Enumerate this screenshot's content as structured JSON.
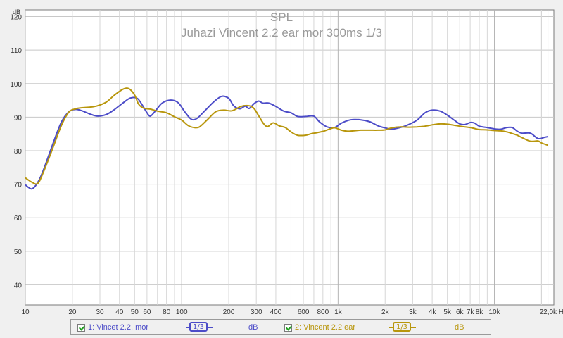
{
  "chart_data": {
    "type": "line",
    "title": "SPL",
    "subtitle": "Juhazi Vincent 2.2 ear mor 300ms 1/3",
    "ylabel": "dB",
    "xscale": "log",
    "xlim": [
      10,
      24000
    ],
    "ylim": [
      34,
      122
    ],
    "yticks": [
      40,
      50,
      60,
      70,
      80,
      90,
      100,
      110,
      120
    ],
    "xticks": [
      {
        "v": 10,
        "label": "10"
      },
      {
        "v": 20,
        "label": "20"
      },
      {
        "v": 30,
        "label": "30"
      },
      {
        "v": 40,
        "label": "40"
      },
      {
        "v": 50,
        "label": "50"
      },
      {
        "v": 60,
        "label": "60"
      },
      {
        "v": 80,
        "label": "80"
      },
      {
        "v": 100,
        "label": "100"
      },
      {
        "v": 200,
        "label": "200"
      },
      {
        "v": 300,
        "label": "300"
      },
      {
        "v": 400,
        "label": "400"
      },
      {
        "v": 600,
        "label": "600"
      },
      {
        "v": 800,
        "label": "800"
      },
      {
        "v": 1000,
        "label": "1k"
      },
      {
        "v": 2000,
        "label": "2k"
      },
      {
        "v": 3000,
        "label": "3k"
      },
      {
        "v": 4000,
        "label": "4k"
      },
      {
        "v": 5000,
        "label": "5k"
      },
      {
        "v": 6000,
        "label": "6k"
      },
      {
        "v": 7000,
        "label": "7k"
      },
      {
        "v": 8000,
        "label": "8k"
      },
      {
        "v": 10000,
        "label": "10k"
      },
      {
        "v": 22000,
        "label": "22,0k Hz"
      }
    ],
    "grid": true,
    "series": [
      {
        "name": "1: Vincet 2.2. mor",
        "color": "#4c4cc8",
        "points": [
          [
            10,
            69.8
          ],
          [
            11,
            68.6
          ],
          [
            12,
            70.5
          ],
          [
            13,
            74
          ],
          [
            15,
            82
          ],
          [
            17,
            88.5
          ],
          [
            19,
            91.6
          ],
          [
            21,
            92.3
          ],
          [
            23,
            91.9
          ],
          [
            26,
            90.9
          ],
          [
            29,
            90.3
          ],
          [
            33,
            90.8
          ],
          [
            37,
            92.2
          ],
          [
            42,
            94.2
          ],
          [
            47,
            95.7
          ],
          [
            52,
            95.6
          ],
          [
            56,
            93.6
          ],
          [
            60,
            91.3
          ],
          [
            63,
            90.3
          ],
          [
            68,
            91.9
          ],
          [
            75,
            94.2
          ],
          [
            85,
            95.1
          ],
          [
            95,
            94.3
          ],
          [
            105,
            91.5
          ],
          [
            115,
            89.4
          ],
          [
            125,
            89.6
          ],
          [
            140,
            91.8
          ],
          [
            160,
            94.5
          ],
          [
            180,
            96.2
          ],
          [
            200,
            95.6
          ],
          [
            215,
            93.4
          ],
          [
            235,
            92.5
          ],
          [
            255,
            93.3
          ],
          [
            270,
            92.6
          ],
          [
            290,
            94
          ],
          [
            310,
            94.8
          ],
          [
            330,
            94.2
          ],
          [
            360,
            94.2
          ],
          [
            400,
            93.2
          ],
          [
            450,
            91.8
          ],
          [
            500,
            91.3
          ],
          [
            550,
            90.2
          ],
          [
            620,
            90.2
          ],
          [
            700,
            90.3
          ],
          [
            760,
            88.6
          ],
          [
            850,
            87.1
          ],
          [
            950,
            86.9
          ],
          [
            1050,
            88.2
          ],
          [
            1200,
            89.2
          ],
          [
            1400,
            89.2
          ],
          [
            1600,
            88.6
          ],
          [
            1800,
            87.4
          ],
          [
            2000,
            86.8
          ],
          [
            2200,
            86.4
          ],
          [
            2500,
            86.9
          ],
          [
            2800,
            87.7
          ],
          [
            3200,
            89.1
          ],
          [
            3600,
            91.3
          ],
          [
            4000,
            92.1
          ],
          [
            4500,
            91.8
          ],
          [
            5000,
            90.6
          ],
          [
            5500,
            89.2
          ],
          [
            6000,
            88
          ],
          [
            6500,
            87.8
          ],
          [
            7000,
            88.4
          ],
          [
            7500,
            88.2
          ],
          [
            8000,
            87.3
          ],
          [
            9000,
            86.9
          ],
          [
            10000,
            86.5
          ],
          [
            11000,
            86.4
          ],
          [
            12000,
            86.9
          ],
          [
            13000,
            86.9
          ],
          [
            14000,
            85.8
          ],
          [
            15000,
            85.2
          ],
          [
            17000,
            85.2
          ],
          [
            19000,
            83.6
          ],
          [
            21000,
            84
          ],
          [
            22000,
            84.2
          ]
        ]
      },
      {
        "name": "2: Vincent 2.2 ear",
        "color": "#b8960c",
        "points": [
          [
            10,
            71.9
          ],
          [
            11,
            70.6
          ],
          [
            12,
            70.2
          ],
          [
            13,
            73.4
          ],
          [
            15,
            80.8
          ],
          [
            17,
            87.5
          ],
          [
            19,
            91.5
          ],
          [
            21,
            92.5
          ],
          [
            23,
            92.8
          ],
          [
            26,
            93
          ],
          [
            29,
            93.4
          ],
          [
            33,
            94.5
          ],
          [
            37,
            96.5
          ],
          [
            42,
            98.3
          ],
          [
            46,
            98.5
          ],
          [
            50,
            96.6
          ],
          [
            53,
            93.9
          ],
          [
            57,
            92.7
          ],
          [
            63,
            92.4
          ],
          [
            70,
            91.8
          ],
          [
            80,
            91.3
          ],
          [
            90,
            90.1
          ],
          [
            100,
            89.1
          ],
          [
            110,
            87.5
          ],
          [
            120,
            86.9
          ],
          [
            130,
            87.1
          ],
          [
            145,
            89.1
          ],
          [
            165,
            91.6
          ],
          [
            185,
            92.1
          ],
          [
            210,
            91.9
          ],
          [
            240,
            93.2
          ],
          [
            270,
            93.4
          ],
          [
            290,
            92.6
          ],
          [
            310,
            90.5
          ],
          [
            335,
            88
          ],
          [
            355,
            87.2
          ],
          [
            385,
            88.3
          ],
          [
            420,
            87.4
          ],
          [
            460,
            86.9
          ],
          [
            500,
            85.6
          ],
          [
            550,
            84.6
          ],
          [
            620,
            84.6
          ],
          [
            680,
            85.1
          ],
          [
            740,
            85.4
          ],
          [
            820,
            85.9
          ],
          [
            900,
            86.6
          ],
          [
            960,
            86.8
          ],
          [
            1050,
            86.1
          ],
          [
            1150,
            85.8
          ],
          [
            1250,
            85.9
          ],
          [
            1400,
            86.1
          ],
          [
            1600,
            86.1
          ],
          [
            1800,
            86.1
          ],
          [
            2000,
            86.2
          ],
          [
            2200,
            86.8
          ],
          [
            2500,
            87.1
          ],
          [
            2800,
            87
          ],
          [
            3200,
            87.1
          ],
          [
            3600,
            87.3
          ],
          [
            4000,
            87.7
          ],
          [
            4500,
            88
          ],
          [
            5000,
            87.9
          ],
          [
            5500,
            87.6
          ],
          [
            6000,
            87.3
          ],
          [
            6500,
            87.1
          ],
          [
            7000,
            86.9
          ],
          [
            7500,
            86.6
          ],
          [
            8000,
            86.3
          ],
          [
            9000,
            86.2
          ],
          [
            10000,
            86
          ],
          [
            11000,
            85.9
          ],
          [
            12000,
            85.6
          ],
          [
            13000,
            85.1
          ],
          [
            14000,
            84.6
          ],
          [
            15000,
            83.9
          ],
          [
            17000,
            82.8
          ],
          [
            19000,
            82.9
          ],
          [
            20000,
            82.3
          ],
          [
            22000,
            81.6
          ]
        ]
      }
    ]
  },
  "legend": {
    "items": [
      {
        "name": "1: Vincet 2.2. mor",
        "smoothing": "1/3",
        "unit": "dB",
        "color": "#4c4cc8"
      },
      {
        "name": "2: Vincent 2.2 ear",
        "smoothing": "1/3",
        "unit": "dB",
        "color": "#b8960c"
      }
    ]
  }
}
